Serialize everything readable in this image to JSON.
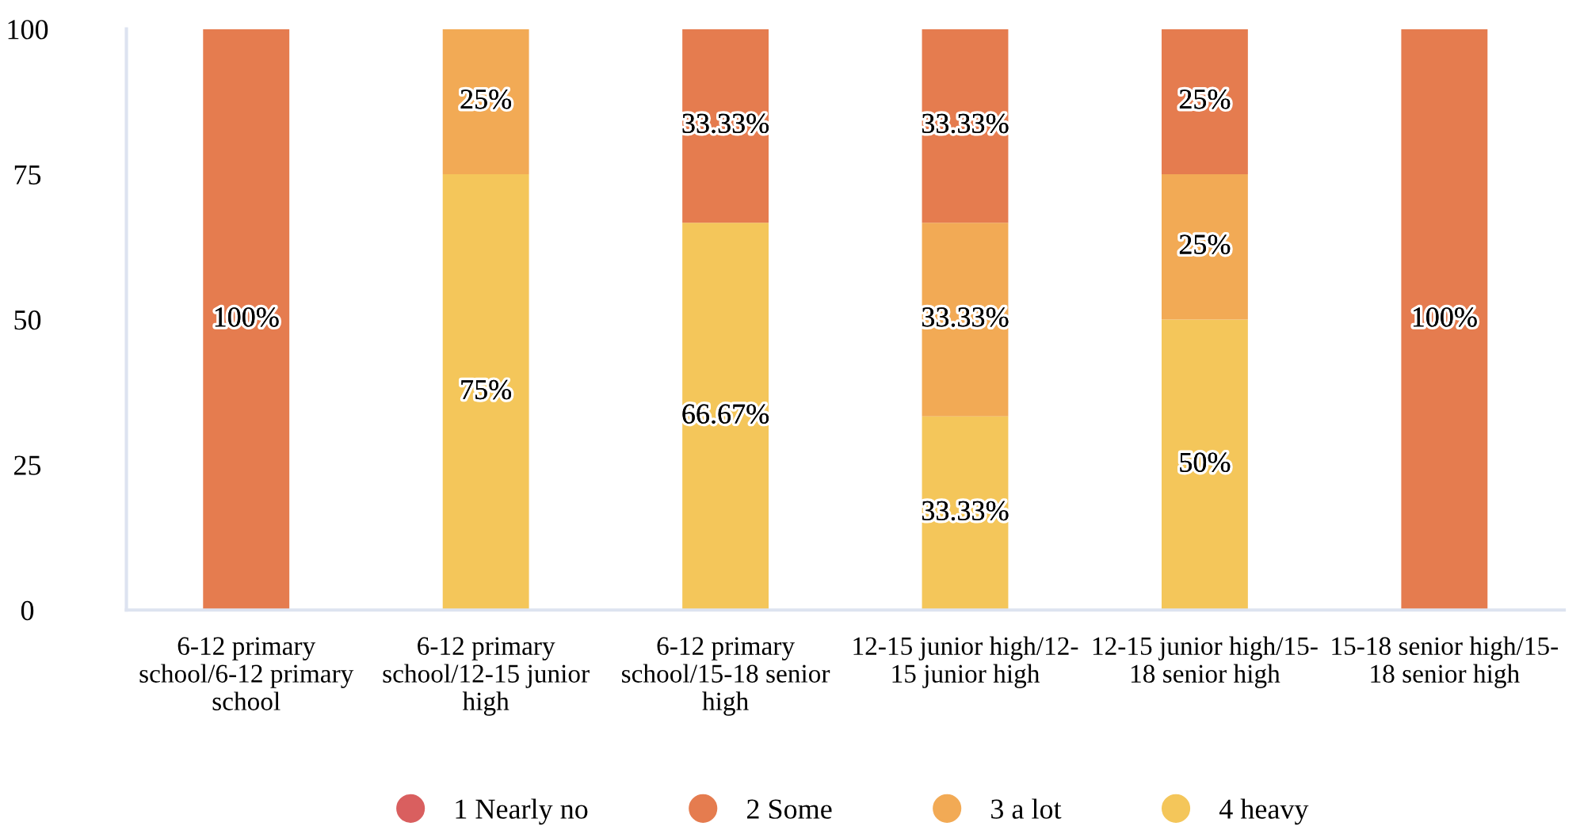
{
  "chart_data": {
    "type": "bar",
    "stacked": true,
    "categories": [
      "6-12 primary school/6-12 primary school",
      "6-12 primary school/12-15 junior high",
      "6-12 primary school/15-18 senior high",
      "12-15 junior high/12-15 junior high",
      "12-15 junior high/15-18 senior high",
      "15-18 senior high/15-18 senior high"
    ],
    "series": [
      {
        "name": "4 heavy",
        "color": "#f4c65a",
        "values": [
          0,
          75,
          66.67,
          33.33,
          50,
          0
        ],
        "value_labels": [
          null,
          "75%",
          "66.67%",
          "33.33%",
          "50%",
          null
        ]
      },
      {
        "name": "3 a lot",
        "color": "#f2aa55",
        "values": [
          0,
          25,
          0,
          33.33,
          25,
          0
        ],
        "value_labels": [
          null,
          "25%",
          null,
          "33.33%",
          "25%",
          null
        ]
      },
      {
        "name": "2 Some",
        "color": "#e57c4f",
        "values": [
          100,
          0,
          33.33,
          33.33,
          25,
          100
        ],
        "value_labels": [
          "100%",
          null,
          "33.33%",
          "33.33%",
          "25%",
          "100%"
        ]
      },
      {
        "name": "1 Nearly no",
        "color": "#d95f5f",
        "values": [
          0,
          0,
          0,
          0,
          0,
          0
        ],
        "value_labels": [
          null,
          null,
          null,
          null,
          null,
          null
        ]
      }
    ],
    "ylim": [
      0,
      100
    ],
    "yticks": [
      0,
      25,
      50,
      75,
      100
    ],
    "grid": false,
    "legend": "bottom"
  }
}
